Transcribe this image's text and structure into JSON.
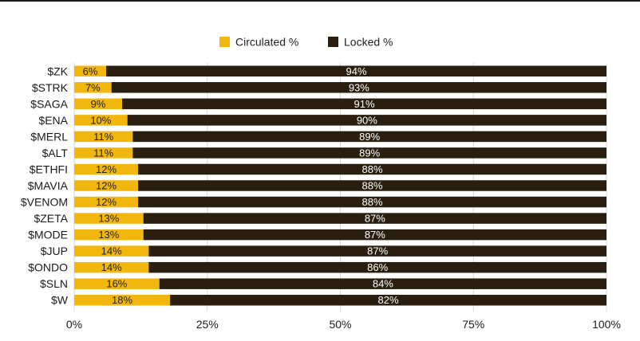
{
  "chart_data": {
    "type": "bar",
    "orientation": "horizontal",
    "stacked": true,
    "categories": [
      "$ZK",
      "$STRK",
      "$SAGA",
      "$ENA",
      "$MERL",
      "$ALT",
      "$ETHFI",
      "$MAVIA",
      "$VENOM",
      "$ZETA",
      "$MODE",
      "$JUP",
      "$ONDO",
      "$SLN",
      "$W"
    ],
    "series": [
      {
        "name": "Circulated %",
        "color": "#f1b70f",
        "values": [
          6,
          7,
          9,
          10,
          11,
          11,
          12,
          12,
          12,
          13,
          13,
          14,
          14,
          16,
          18
        ],
        "labels": [
          "6%",
          "7%",
          "9%",
          "10%",
          "11%",
          "11%",
          "12%",
          "12%",
          "12%",
          "13%",
          "13%",
          "14%",
          "14%",
          "16%",
          "18%"
        ]
      },
      {
        "name": "Locked %",
        "color": "#2a1f0e",
        "values": [
          94,
          93,
          91,
          90,
          89,
          89,
          88,
          88,
          88,
          87,
          87,
          87,
          86,
          84,
          82
        ],
        "labels": [
          "94%",
          "93%",
          "91%",
          "90%",
          "89%",
          "89%",
          "88%",
          "88%",
          "88%",
          "87%",
          "87%",
          "87%",
          "86%",
          "84%",
          "82%"
        ]
      }
    ],
    "xlim": [
      0,
      100
    ],
    "xticks": [
      0,
      25,
      50,
      75,
      100
    ],
    "xtick_labels": [
      "0%",
      "25%",
      "50%",
      "75%",
      "100%"
    ],
    "legend_position": "top",
    "grid": true
  }
}
